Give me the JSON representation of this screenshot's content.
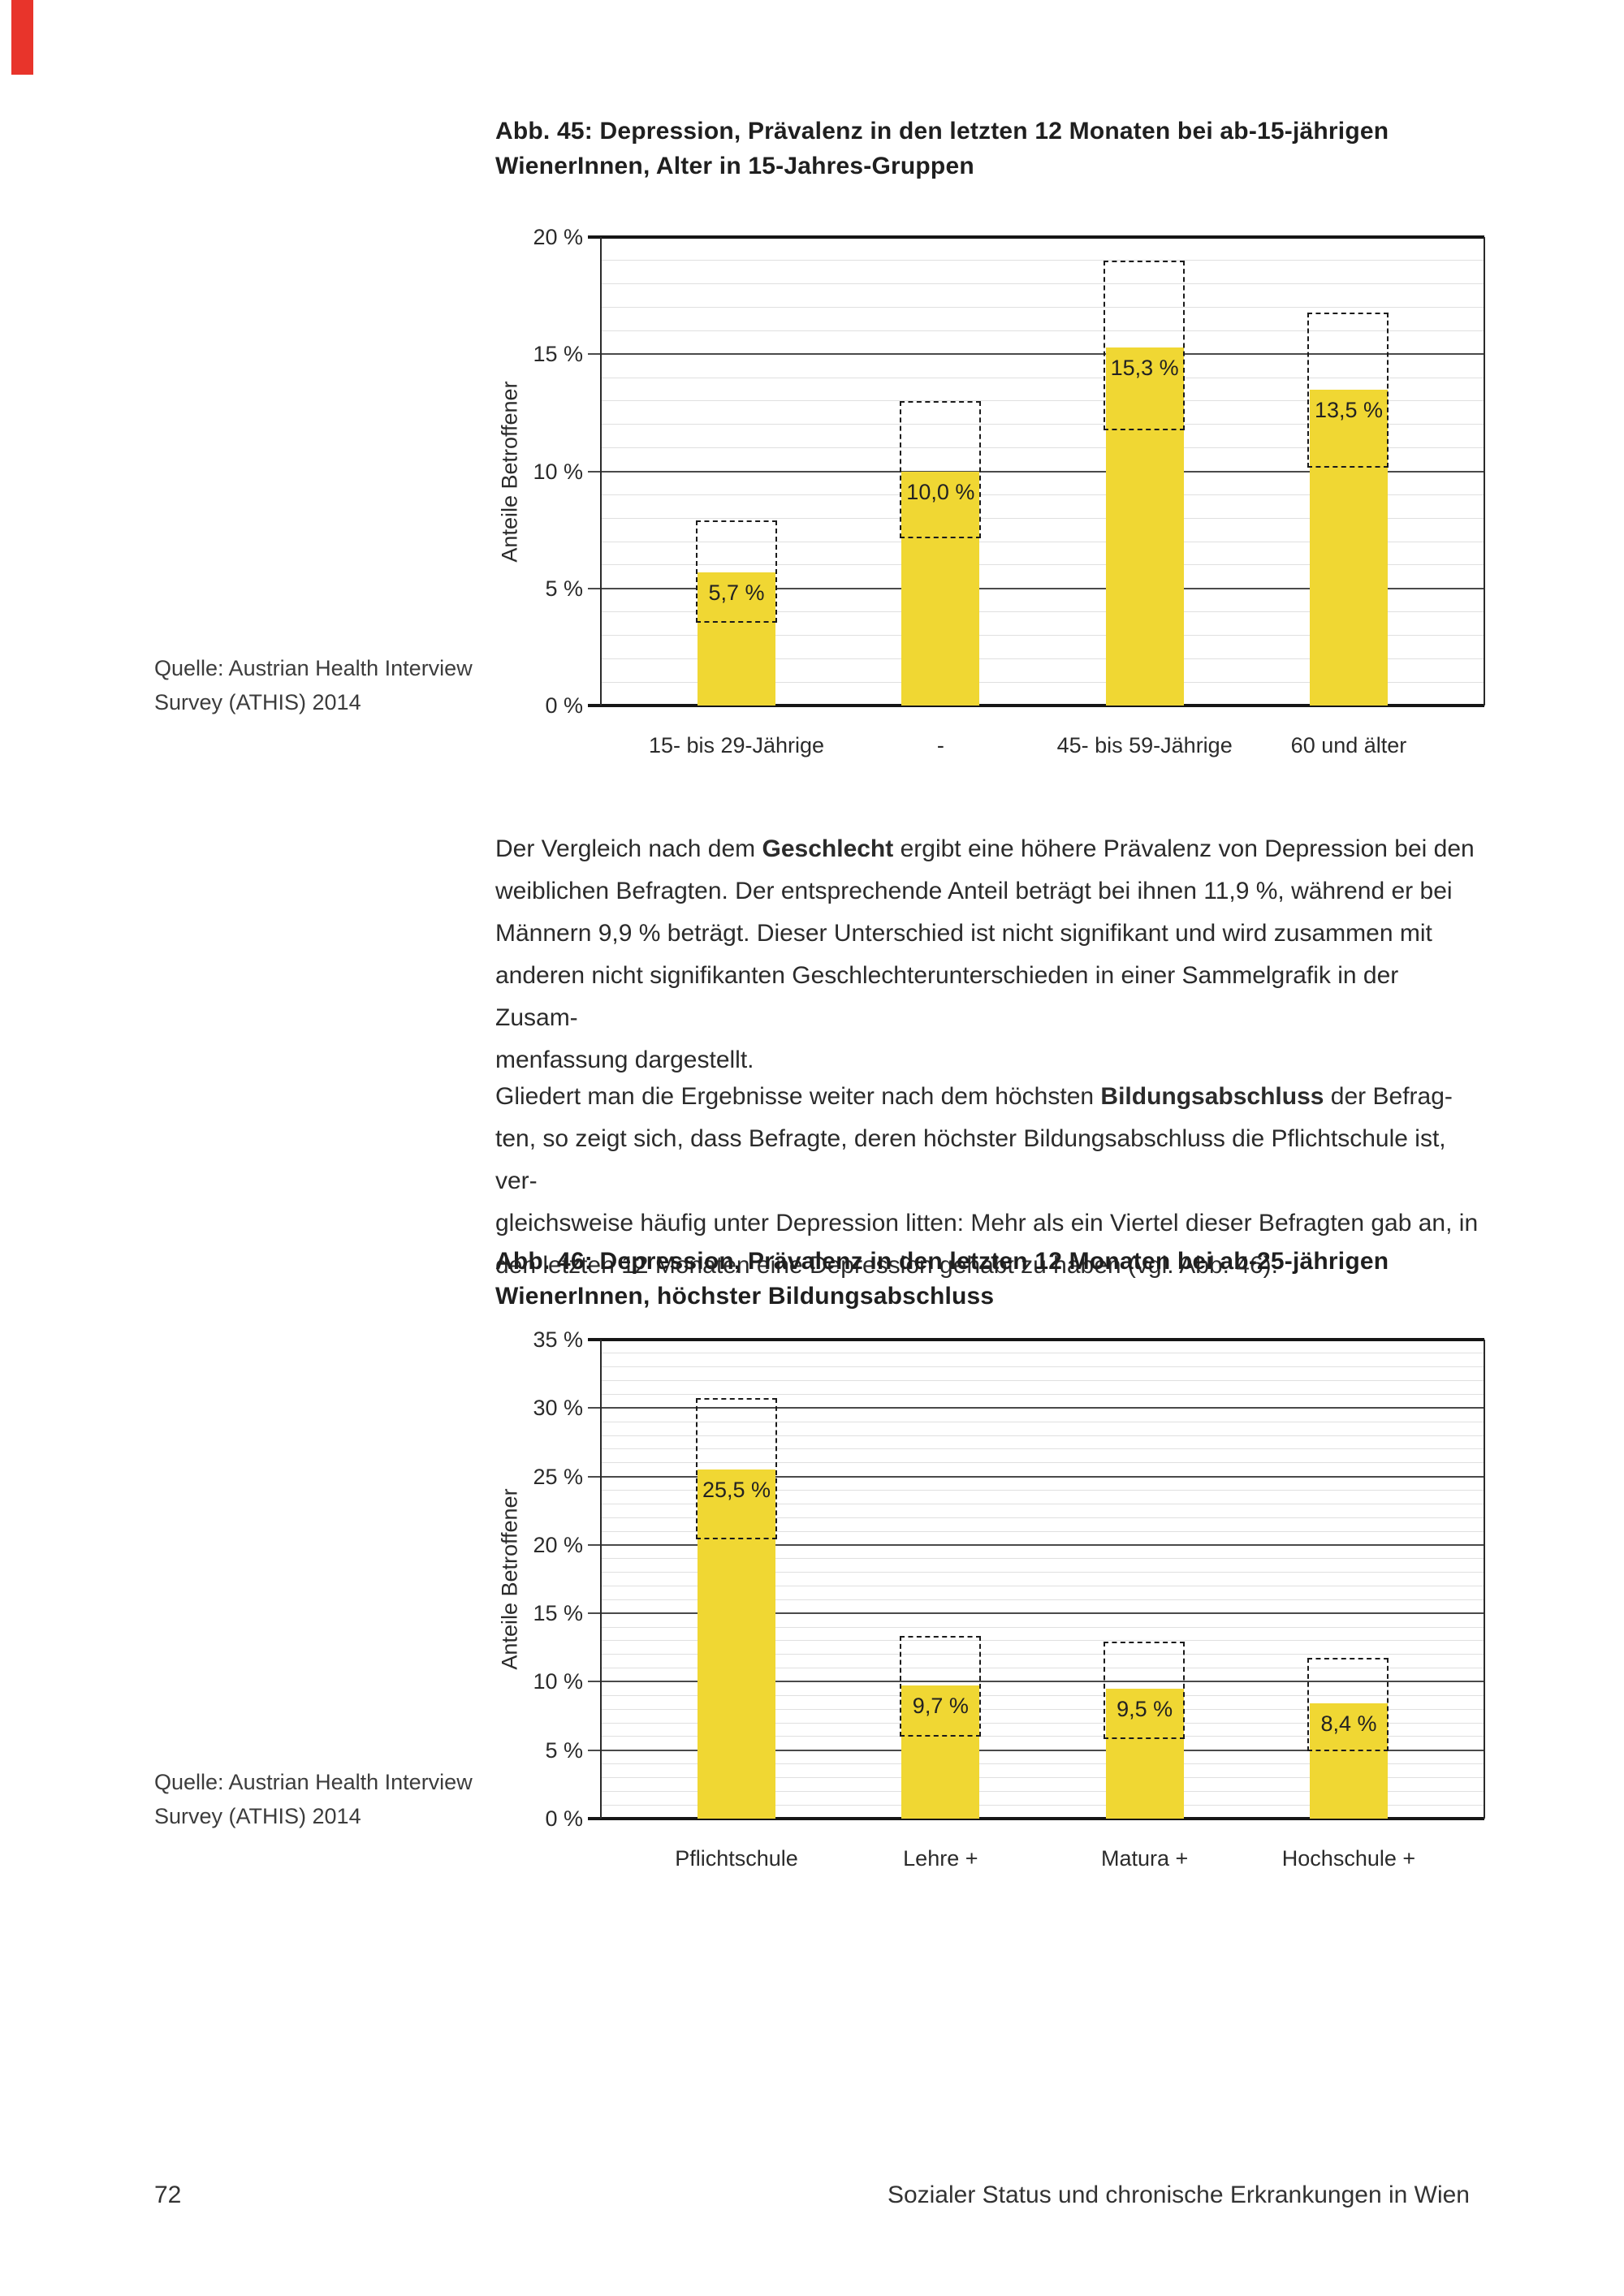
{
  "figure45": {
    "title_line1": "Abb. 45: Depression, Prävalenz in den letzten 12 Monaten bei ab-15-jährigen",
    "title_line2": "WienerInnen, Alter in 15-Jahres-Gruppen",
    "source_line1": "Quelle: Austrian Health Interview",
    "source_line2": "Survey (ATHIS) 2014"
  },
  "figure46": {
    "title_line1": "Abb. 46: Depression, Prävalenz in den letzten 12 Monaten bei ab-25-jährigen",
    "title_line2": "WienerInnen, höchster Bildungsabschluss",
    "source_line1": "Quelle: Austrian Health Interview",
    "source_line2": "Survey (ATHIS) 2014"
  },
  "footer": {
    "page_number": "72",
    "title": "Sozialer Status und chronische Erkrankungen in Wien"
  },
  "accent_colors": {
    "bar_yellow": "#f0d733",
    "corner_marker_red": "#e8342b"
  },
  "paragraphs": [
    {
      "lines": [
        [
          [
            "Der Vergleich nach dem ",
            0
          ],
          [
            "Geschlecht",
            1
          ],
          [
            " ergibt eine höhere Prävalenz von Depression bei den",
            0
          ]
        ],
        [
          [
            "weiblichen Befragten. Der entsprechende Anteil beträgt bei ihnen 11,9 %, während er bei",
            0
          ]
        ],
        [
          [
            "Männern 9,9 % beträgt. Dieser Unterschied ist nicht signifikant und wird zusammen mit",
            0
          ]
        ],
        [
          [
            "anderen nicht signifikanten Geschlechterunterschieden in einer Sammelgrafik in der Zusam-",
            0
          ]
        ],
        [
          [
            "menfassung dargestellt.",
            0
          ]
        ]
      ]
    },
    {
      "lines": [
        [
          [
            "Gliedert man die Ergebnisse weiter nach dem höchsten ",
            0
          ],
          [
            "Bildungsabschluss",
            1
          ],
          [
            " der Befrag-",
            0
          ]
        ],
        [
          [
            "ten, so zeigt sich, dass Befragte, deren höchster Bildungsabschluss die Pflichtschule ist, ver-",
            0
          ]
        ],
        [
          [
            "gleichsweise häufig unter Depression litten: Mehr als ein Viertel dieser Befragten gab an, in",
            0
          ]
        ],
        [
          [
            "den letzten 12 Monaten eine Depression gehabt zu haben (vgl. Abb. 46).",
            0
          ]
        ]
      ]
    }
  ],
  "chart_data": [
    {
      "type": "bar",
      "title": "Abb. 45: Depression, Prävalenz in den letzten 12 Monaten bei ab-15-jährigen WienerInnen, Alter in 15-Jahres-Gruppen",
      "ylabel": "Anteile Betroffener",
      "categories": [
        "15- bis 29-Jährige",
        "-",
        "45- bis 59-Jährige",
        "60 und älter"
      ],
      "values": [
        5.7,
        10.0,
        15.3,
        13.5
      ],
      "value_labels": [
        "5,7 %",
        "10,0 %",
        "15,3 %",
        "13,5 %"
      ],
      "ci_low": [
        3.6,
        7.2,
        11.8,
        10.2
      ],
      "ci_high": [
        7.8,
        12.9,
        18.9,
        16.7
      ],
      "ylim": [
        0,
        20
      ],
      "ytick_step": 5,
      "minor_step": 1,
      "ytick_labels": [
        "20 %",
        "15 %",
        "10 %",
        "5 %",
        "0 %"
      ],
      "grid": "on",
      "legend": "none"
    },
    {
      "type": "bar",
      "title": "Abb. 46: Depression, Prävalenz in den letzten 12 Monaten bei ab-25-jährigen WienerInnen, höchster Bildungsabschluss",
      "ylabel": "Anteile Betroffener",
      "categories": [
        "Pflichtschule",
        "Lehre +",
        "Matura +",
        "Hochschule +"
      ],
      "values": [
        25.5,
        9.7,
        9.5,
        8.4
      ],
      "value_labels": [
        "25,5 %",
        "9,7 %",
        "9,5 %",
        "8,4 %"
      ],
      "ci_low": [
        20.5,
        6.1,
        5.9,
        5.0
      ],
      "ci_high": [
        30.6,
        13.2,
        12.8,
        11.6
      ],
      "ylim": [
        0,
        35
      ],
      "ytick_step": 5,
      "minor_step": 1,
      "ytick_labels": [
        "35 %",
        "30 %",
        "25 %",
        "20 %",
        "15 %",
        "10 %",
        "5 %",
        "0 %"
      ],
      "grid": "on",
      "legend": "none"
    }
  ]
}
